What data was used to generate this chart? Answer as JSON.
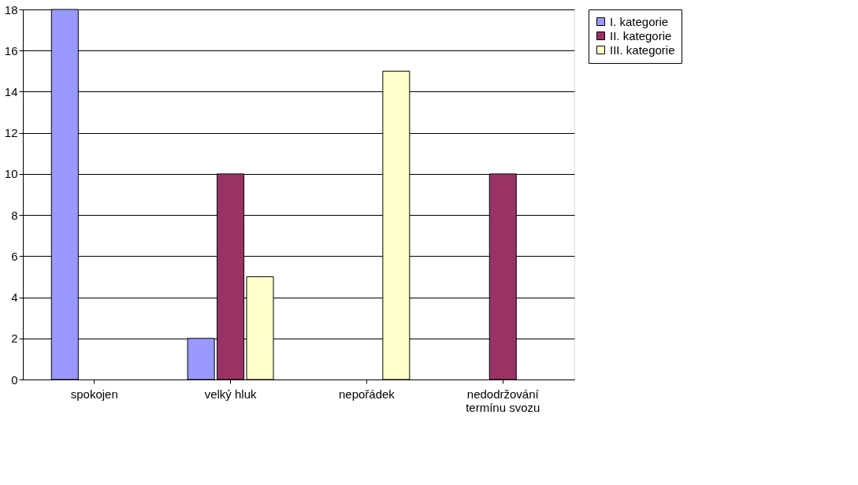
{
  "chart_data": {
    "type": "bar",
    "categories": [
      "spokojen",
      "velký hluk",
      "nepořádek",
      "nedodržování termínu svozu"
    ],
    "series": [
      {
        "name": "I. kategorie",
        "color": "#9999ff",
        "values": [
          18,
          2,
          0,
          0
        ]
      },
      {
        "name": "II. kategorie",
        "color": "#993366",
        "values": [
          0,
          10,
          0,
          10
        ]
      },
      {
        "name": "III. kategorie",
        "color": "#ffffcc",
        "values": [
          0,
          5,
          15,
          0
        ]
      }
    ],
    "ylim": [
      0,
      18
    ],
    "yticks": [
      0,
      2,
      4,
      6,
      8,
      10,
      12,
      14,
      16,
      18
    ],
    "grid": "y",
    "legend": "right"
  }
}
